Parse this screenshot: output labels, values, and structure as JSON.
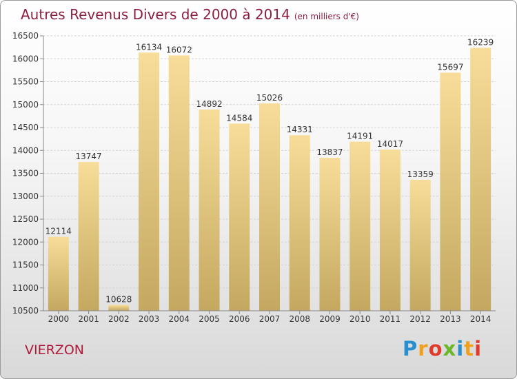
{
  "chart_data": {
    "type": "bar",
    "title": "Autres Revenus Divers de 2000 à 2014",
    "subtitle": "(en milliers d'€)",
    "categories": [
      "2000",
      "2001",
      "2002",
      "2003",
      "2004",
      "2005",
      "2006",
      "2007",
      "2008",
      "2009",
      "2010",
      "2011",
      "2012",
      "2013",
      "2014"
    ],
    "values": [
      12114,
      13747,
      10628,
      16134,
      16072,
      14892,
      14584,
      15026,
      14331,
      13837,
      14191,
      14017,
      13359,
      15697,
      16239
    ],
    "ylim": [
      10500,
      16500
    ],
    "yticks": [
      10500,
      11000,
      11500,
      12000,
      12500,
      13000,
      13500,
      14000,
      14500,
      15000,
      15500,
      16000,
      16500
    ],
    "grid": true,
    "legend": "none",
    "bar_color_top": "#f7dd99",
    "bar_color_bottom": "#c4a860"
  },
  "footer": {
    "city": "VIERZON",
    "logo_letters": [
      "P",
      "r",
      "o",
      "x",
      "i",
      "t",
      "i"
    ],
    "logo_colors": [
      "#2a8fcf",
      "#f0a020",
      "#e03c2c",
      "#6ab82a",
      "#2a8fcf",
      "#f0a020",
      "#e03c2c"
    ]
  },
  "colors": {
    "title": "#8c1f3e",
    "city": "#b01a3a"
  }
}
